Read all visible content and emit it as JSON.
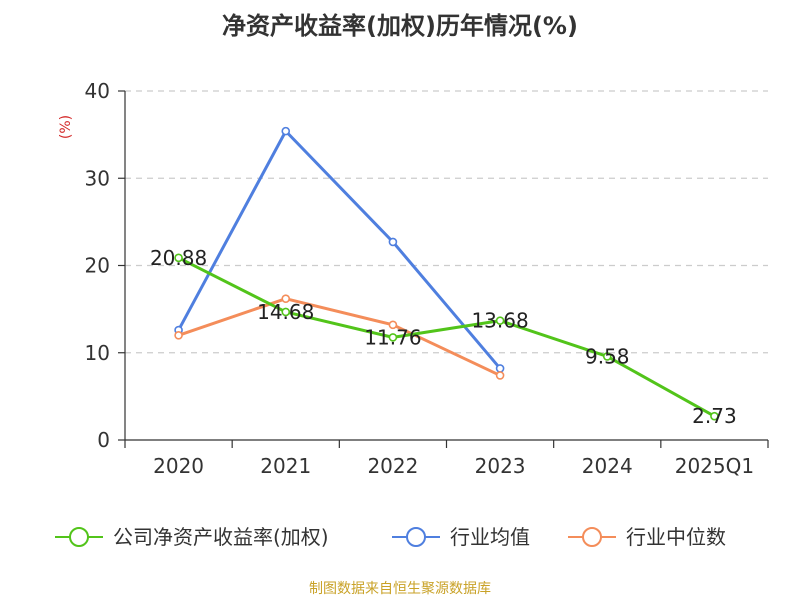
{
  "chart_data": {
    "type": "line",
    "title": "净资产收益率(加权)历年情况(%)",
    "ylabel": "(%)",
    "xlabel": "",
    "ylim": [
      0,
      40
    ],
    "yticks": [
      0,
      10,
      20,
      30,
      40
    ],
    "grid": true,
    "legend_position": "bottom",
    "categories": [
      "2020",
      "2021",
      "2022",
      "2023",
      "2024",
      "2025Q1"
    ],
    "series": [
      {
        "name": "公司净资产收益率(加权)",
        "color": "#52c41a",
        "values": [
          20.88,
          14.68,
          11.76,
          13.68,
          9.58,
          2.73
        ],
        "labels": [
          "20.88",
          "14.68",
          "11.76",
          "13.68",
          "9.58",
          "2.73"
        ]
      },
      {
        "name": "行业均值",
        "color": "#4f7fdf",
        "values": [
          12.6,
          35.4,
          22.7,
          8.2,
          null,
          null
        ]
      },
      {
        "name": "行业中位数",
        "color": "#f48d5a",
        "values": [
          12.0,
          16.2,
          13.2,
          7.4,
          null,
          null
        ]
      }
    ]
  },
  "source": "制图数据来自恒生聚源数据库"
}
